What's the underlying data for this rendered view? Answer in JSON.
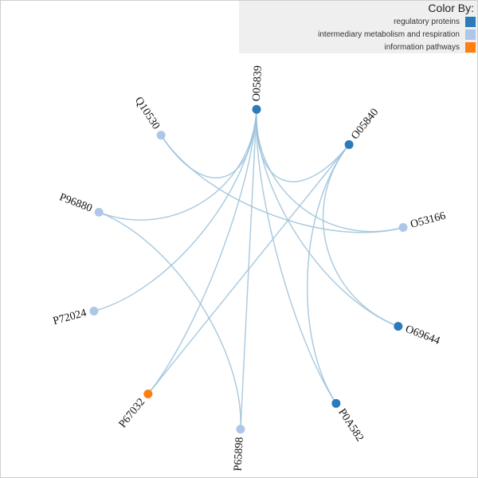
{
  "legend": {
    "title": "Color By:",
    "items": [
      {
        "label": "regulatory proteins",
        "color": "#2b7bba"
      },
      {
        "label": "intermediary metabolism and respiration",
        "color": "#aec7e8"
      },
      {
        "label": "information pathways",
        "color": "#ff7f0e"
      }
    ]
  },
  "nodes": [
    {
      "id": "O05839",
      "group": 0
    },
    {
      "id": "O05840",
      "group": 0
    },
    {
      "id": "O53166",
      "group": 1
    },
    {
      "id": "O69644",
      "group": 0
    },
    {
      "id": "P0A582",
      "group": 0
    },
    {
      "id": "P65898",
      "group": 1
    },
    {
      "id": "P67032",
      "group": 2
    },
    {
      "id": "P72024",
      "group": 1
    },
    {
      "id": "P96880",
      "group": 1
    },
    {
      "id": "Q10530",
      "group": 1
    }
  ],
  "edges": [
    [
      "O05839",
      "Q10530"
    ],
    [
      "O05839",
      "P96880"
    ],
    [
      "O05839",
      "P72024"
    ],
    [
      "O05839",
      "P67032"
    ],
    [
      "O05839",
      "P65898"
    ],
    [
      "O05839",
      "P0A582"
    ],
    [
      "O05839",
      "O69644"
    ],
    [
      "O05839",
      "O53166"
    ],
    [
      "O05839",
      "O05840"
    ],
    [
      "O05840",
      "P67032"
    ],
    [
      "O05840",
      "O69644"
    ],
    [
      "O05840",
      "P0A582"
    ],
    [
      "Q10530",
      "O53166"
    ],
    [
      "P96880",
      "P65898"
    ]
  ],
  "colors": {
    "edge": "#9ec3da"
  }
}
